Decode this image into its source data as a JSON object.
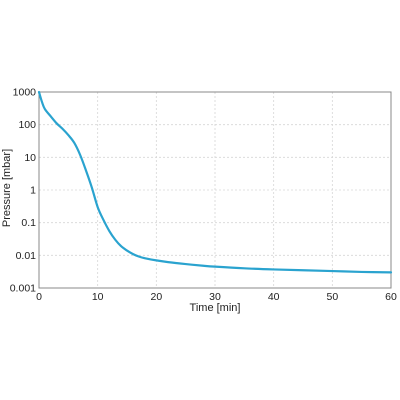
{
  "chart_data": {
    "type": "line",
    "title": "",
    "xlabel": "Time [min]",
    "ylabel": "Pressure [mbar]",
    "xlim": [
      0,
      60
    ],
    "ylim": [
      0.001,
      1000
    ],
    "y_scale": "log",
    "grid": true,
    "x_ticks": [
      "0",
      "10",
      "20",
      "30",
      "40",
      "50",
      "60"
    ],
    "y_ticks": [
      "0.001",
      "0.01",
      "0.1",
      "1",
      "10",
      "100",
      "1000"
    ],
    "colors": {
      "line": "#2aa3cf",
      "grid": "#d6d6d6",
      "frame": "#888888"
    },
    "series": [
      {
        "x": [
          0,
          0.5,
          1,
          2,
          3,
          4,
          5,
          6,
          7,
          8,
          9,
          10,
          11,
          12,
          13,
          14,
          15,
          16,
          17,
          18,
          20,
          22,
          25,
          28,
          30,
          35,
          40,
          45,
          50,
          55,
          60
        ],
        "y": [
          1000,
          500,
          300,
          180,
          110,
          75,
          48,
          28,
          12,
          4,
          1.2,
          0.3,
          0.12,
          0.055,
          0.03,
          0.019,
          0.014,
          0.011,
          0.0092,
          0.0082,
          0.007,
          0.0062,
          0.0054,
          0.0048,
          0.0045,
          0.004,
          0.0037,
          0.0035,
          0.0033,
          0.0031,
          0.003
        ]
      }
    ]
  }
}
